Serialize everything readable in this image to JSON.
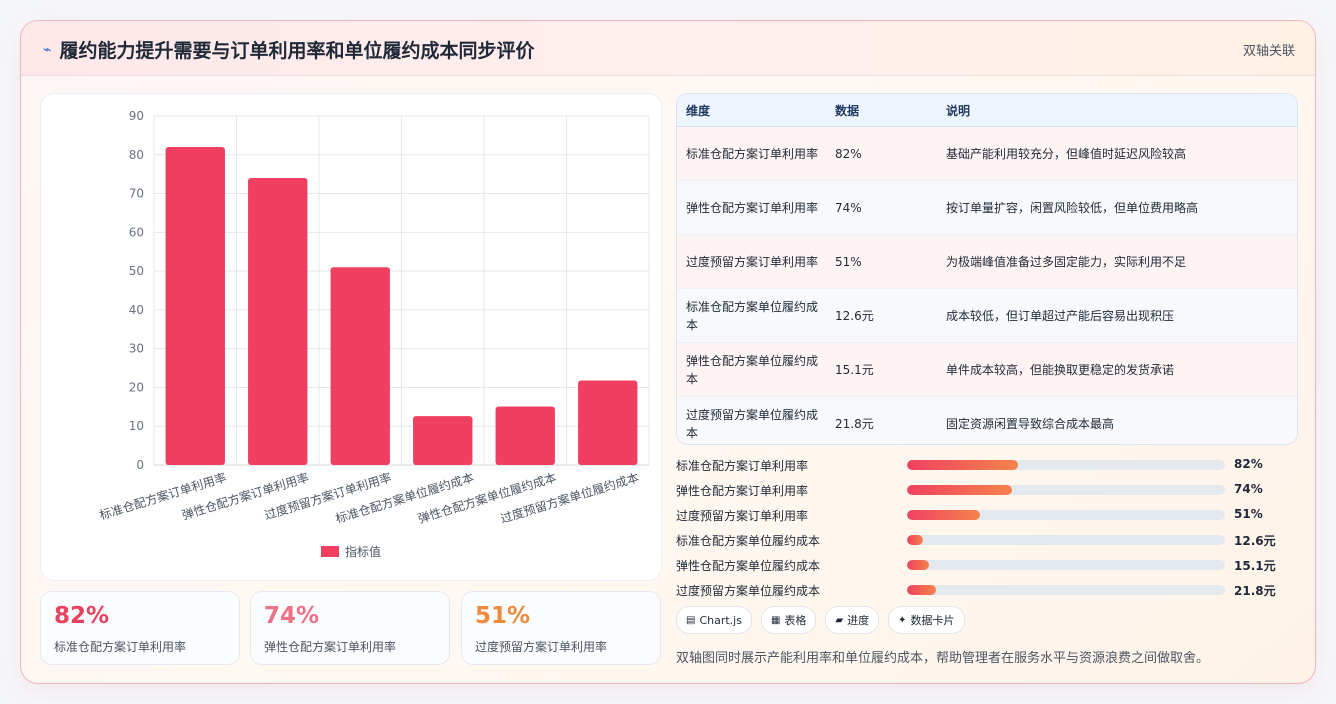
{
  "header": {
    "title_icon": "bolt-icon",
    "title": "履约能力提升需要与订单利用率和单位履约成本同步评价",
    "tag": "双轴关联"
  },
  "chart_data": {
    "type": "bar",
    "categories": [
      "标准仓配方案订单利用率",
      "弹性仓配方案订单利用率",
      "过度预留方案订单利用率",
      "标准仓配方案单位履约成本",
      "弹性仓配方案单位履约成本",
      "过度预留方案单位履约成本"
    ],
    "series": [
      {
        "name": "指标值",
        "values": [
          82,
          74,
          51,
          12.6,
          15.1,
          21.8
        ]
      }
    ],
    "ylim": [
      0,
      90
    ],
    "yticks": [
      0,
      10,
      20,
      30,
      40,
      50,
      60,
      70,
      80,
      90
    ],
    "grid": true,
    "legend": "bottom",
    "bar_color": "#f03f60"
  },
  "kpis": [
    {
      "value": "82%",
      "label": "标准仓配方案订单利用率",
      "color": "#e8425e"
    },
    {
      "value": "74%",
      "label": "弹性仓配方案订单利用率",
      "color": "#f07088"
    },
    {
      "value": "51%",
      "label": "过度预留方案订单利用率",
      "color": "#f08a3c"
    }
  ],
  "table": {
    "headers": [
      "维度",
      "数据",
      "说明"
    ],
    "rows": [
      [
        "标准仓配方案订单利用率",
        "82%",
        "基础产能利用较充分，但峰值时延迟风险较高"
      ],
      [
        "弹性仓配方案订单利用率",
        "74%",
        "按订单量扩容，闲置风险较低，但单位费用略高"
      ],
      [
        "过度预留方案订单利用率",
        "51%",
        "为极端峰值准备过多固定能力，实际利用不足"
      ],
      [
        "标准仓配方案单位履约成本",
        "12.6元",
        "成本较低，但订单超过产能后容易出现积压"
      ],
      [
        "弹性仓配方案单位履约成本",
        "15.1元",
        "单件成本较高，但能换取更稳定的发货承诺"
      ],
      [
        "过度预留方案单位履约成本",
        "21.8元",
        "固定资源闲置导致综合成本最高"
      ]
    ]
  },
  "progress": [
    {
      "label": "标准仓配方案订单利用率",
      "value": "82%",
      "fraction": 0.35
    },
    {
      "label": "弹性仓配方案订单利用率",
      "value": "74%",
      "fraction": 0.33
    },
    {
      "label": "过度预留方案订单利用率",
      "value": "51%",
      "fraction": 0.23
    },
    {
      "label": "标准仓配方案单位履约成本",
      "value": "12.6元",
      "fraction": 0.05
    },
    {
      "label": "弹性仓配方案单位履约成本",
      "value": "15.1元",
      "fraction": 0.07
    },
    {
      "label": "过度预留方案单位履约成本",
      "value": "21.8元",
      "fraction": 0.09
    }
  ],
  "pills": [
    {
      "icon": "chart-icon",
      "glyph": "▤",
      "label": "Chart.js"
    },
    {
      "icon": "table-icon",
      "glyph": "▦",
      "label": "表格"
    },
    {
      "icon": "progress-icon",
      "glyph": "▰",
      "label": "进度"
    },
    {
      "icon": "sparkle-icon",
      "glyph": "✦",
      "label": "数据卡片"
    }
  ],
  "footnote": "双轴图同时展示产能利用率和单位履约成本，帮助管理者在服务水平与资源浪费之间做取舍。"
}
